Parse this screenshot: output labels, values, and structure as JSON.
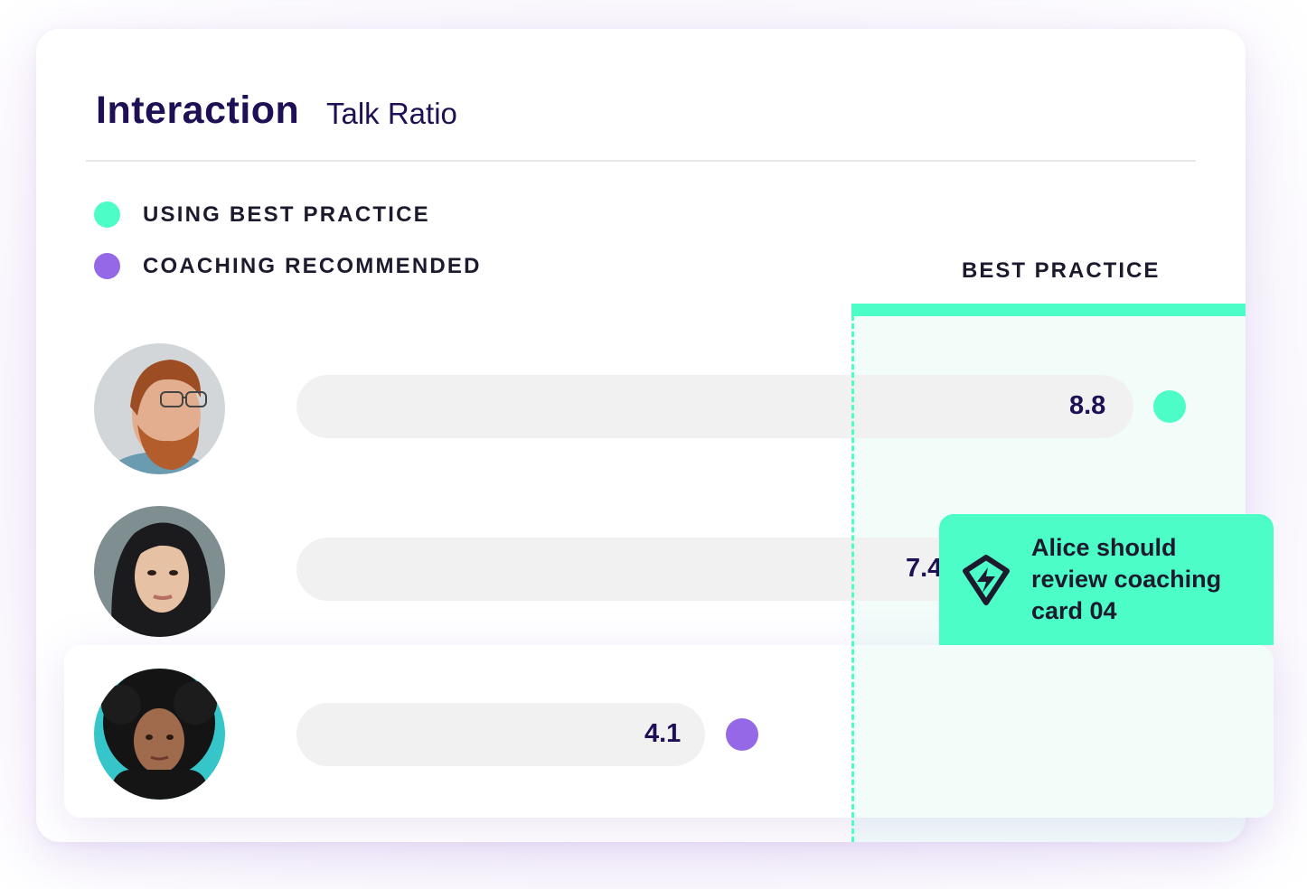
{
  "header": {
    "title": "Interaction",
    "subtitle": "Talk Ratio"
  },
  "legend": [
    {
      "label": "USING BEST PRACTICE",
      "color": "#4cfdc8"
    },
    {
      "label": "COACHING RECOMMENDED",
      "color": "#9468e6"
    }
  ],
  "best_practice": {
    "label": "BEST PRACTICE",
    "color": "#4cfdc8",
    "threshold": 6.8
  },
  "scale_max": 10,
  "rows": [
    {
      "avatar": "avatar-bearded-man-glasses",
      "value": "8.8",
      "ratio": 8.8,
      "status": "using-best-practice",
      "status_color": "#4cfdc8"
    },
    {
      "avatar": "avatar-woman-dark-hair",
      "value": "7.4",
      "ratio": 7.4,
      "status": "none",
      "status_color": ""
    },
    {
      "avatar": "avatar-woman-curly-hair",
      "value": "4.1",
      "ratio": 4.1,
      "status": "coaching-recommended",
      "status_color": "#9468e6"
    }
  ],
  "tooltip": {
    "icon": "lightning-shield-icon",
    "text": "Alice should review coaching card 04"
  }
}
